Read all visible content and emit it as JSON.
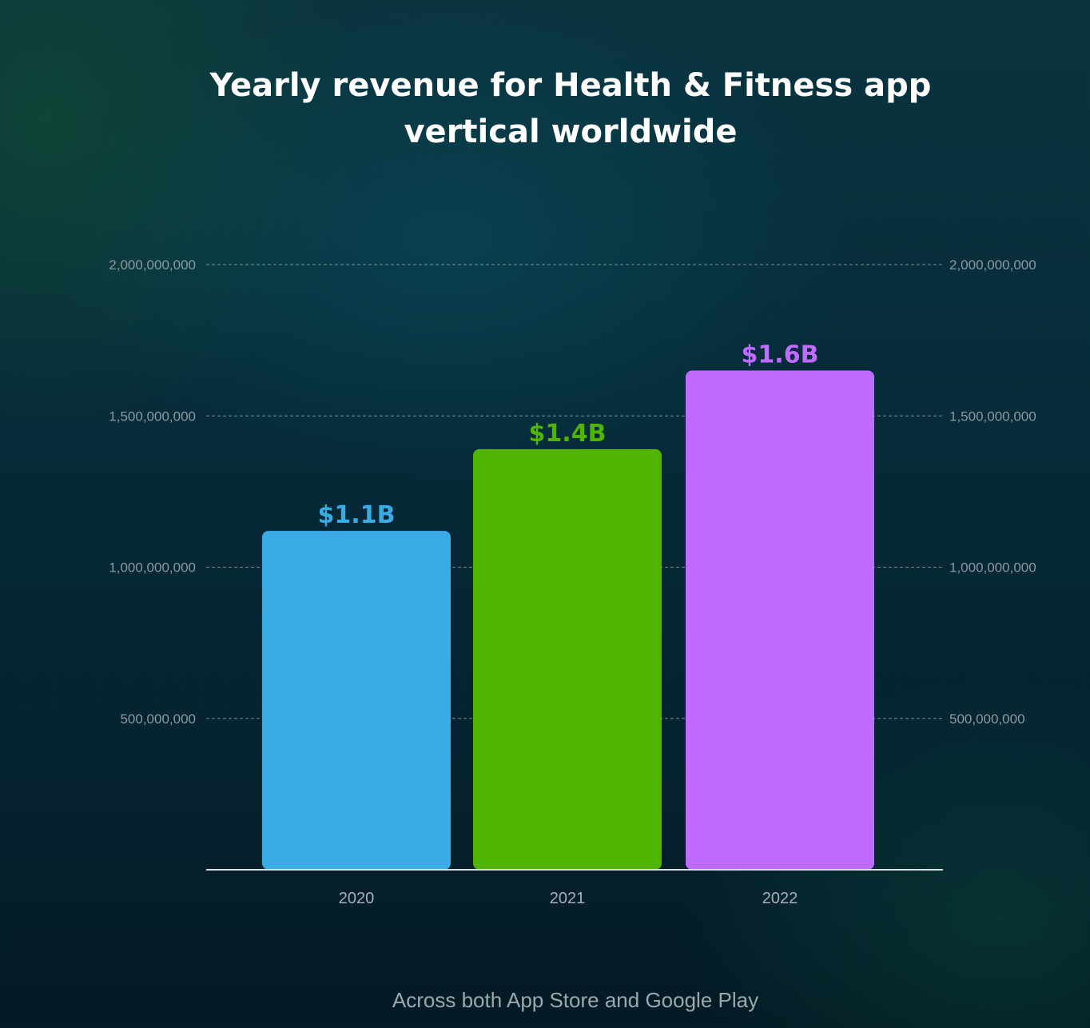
{
  "chart_data": {
    "type": "bar",
    "title": "Yearly revenue for Health & Fitness app vertical worldwide",
    "title_lines": [
      "Yearly revenue for Health & Fitness app",
      "vertical worldwide"
    ],
    "categories": [
      "2020",
      "2021",
      "2022"
    ],
    "values": [
      1120000000,
      1390000000,
      1650000000
    ],
    "data_labels": [
      "$1.1B",
      "$1.4B",
      "$1.6B"
    ],
    "colors": [
      "#3aabe3",
      "#50b400",
      "#bf6bff"
    ],
    "yticks": [
      500000000,
      1000000000,
      1500000000,
      2000000000
    ],
    "ytick_labels": [
      "500,000,000",
      "1,000,000,000",
      "1,500,000,000",
      "2,000,000,000"
    ],
    "ylim": [
      0,
      2000000000
    ],
    "grid": true,
    "xlabel": "",
    "ylabel": "",
    "footer": "Across both App Store and Google Play"
  }
}
